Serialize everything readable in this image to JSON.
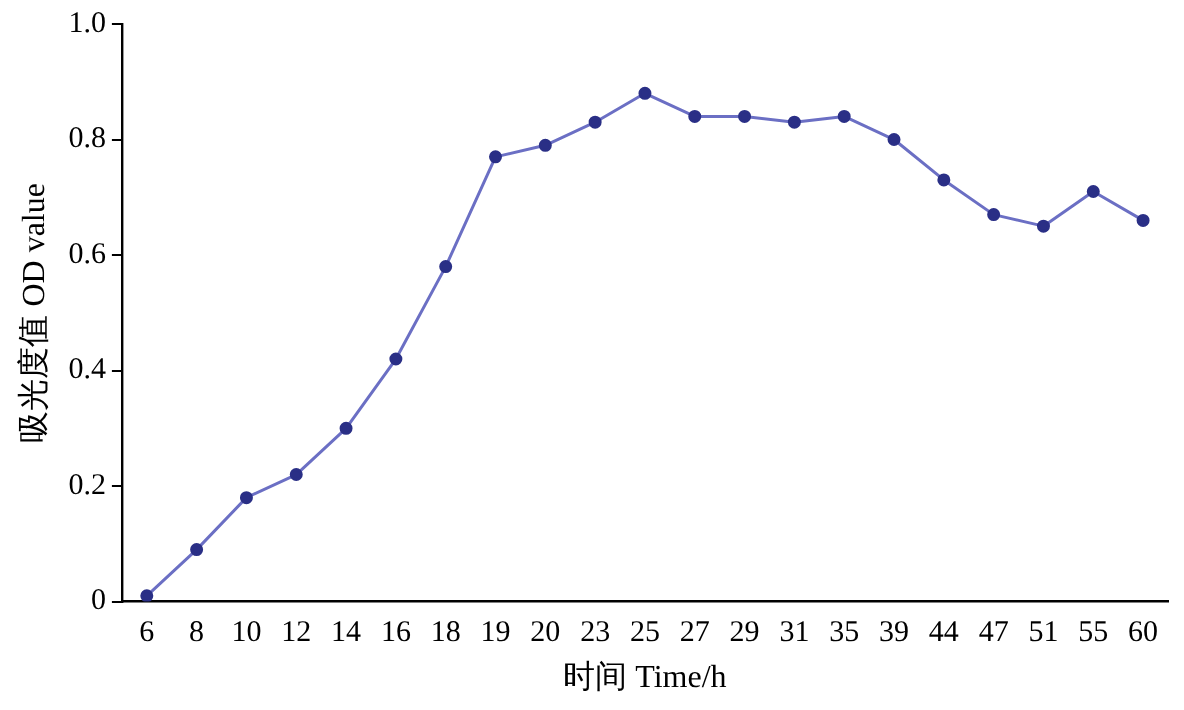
{
  "chart_data": {
    "type": "line",
    "xlabel": "时间 Time/h",
    "ylabel": "吸光度值 OD value",
    "categories": [
      "6",
      "8",
      "10",
      "12",
      "14",
      "16",
      "18",
      "19",
      "20",
      "23",
      "25",
      "27",
      "29",
      "31",
      "35",
      "39",
      "44",
      "47",
      "51",
      "55",
      "60"
    ],
    "series": [
      {
        "color": "#6b6fc4",
        "values": [
          0.01,
          0.09,
          0.18,
          0.22,
          0.3,
          0.42,
          0.58,
          0.77,
          0.79,
          0.83,
          0.88,
          0.84,
          0.84,
          0.83,
          0.84,
          0.8,
          0.73,
          0.67,
          0.65,
          0.71,
          0.66
        ]
      }
    ],
    "ylim": [
      0,
      1
    ],
    "yticks": [
      0,
      0.2,
      0.4,
      0.6,
      0.8,
      {
        "value": 1,
        "label": "1.0"
      }
    ],
    "grid": false,
    "legend": false,
    "marker": "circle",
    "line_style": "solid"
  }
}
